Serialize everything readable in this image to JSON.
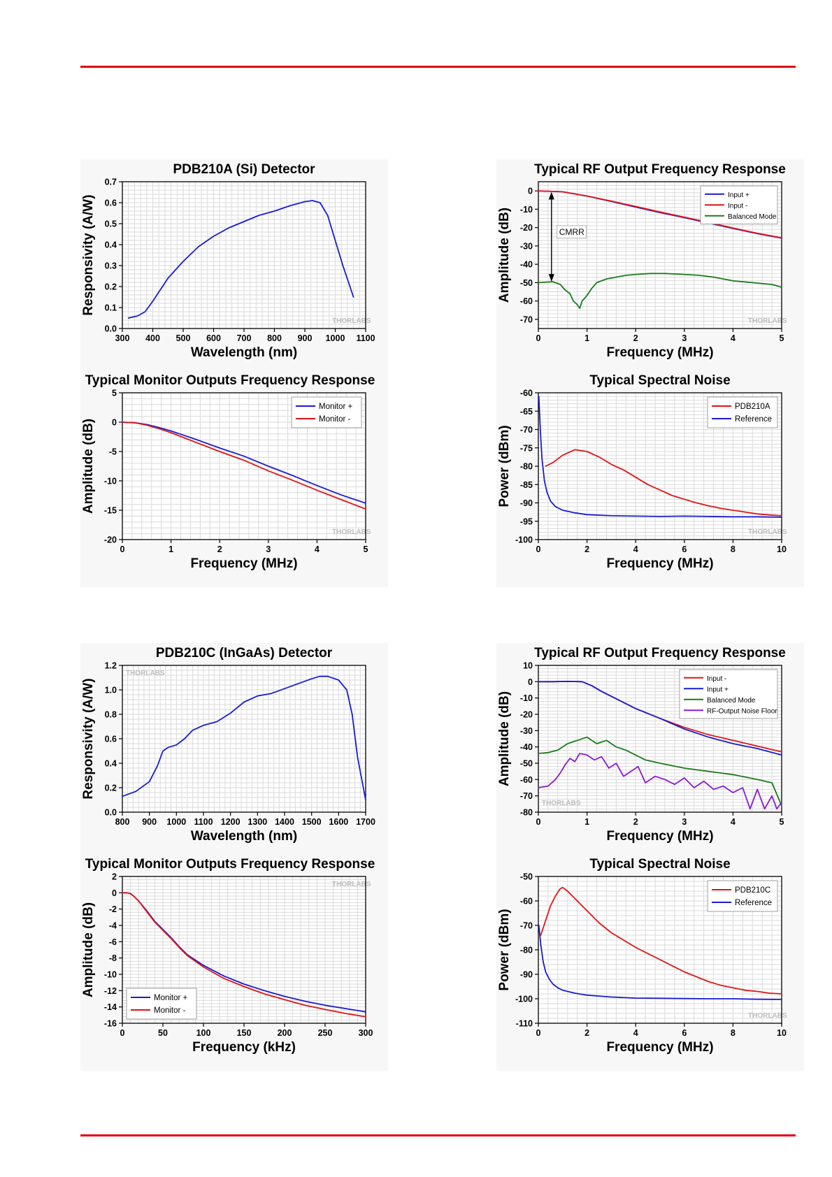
{
  "chart_data": [
    {
      "type": "line",
      "title": "PDB210A (Si) Detector",
      "xlabel": "Wavelength (nm)",
      "ylabel": "Responsivity (A/W)",
      "xlim": [
        300,
        1100
      ],
      "ylim": [
        0,
        0.7
      ],
      "xticks": [
        300,
        400,
        500,
        600,
        700,
        800,
        900,
        1000,
        1100
      ],
      "yticks": [
        0.0,
        0.1,
        0.2,
        0.3,
        0.4,
        0.5,
        0.6,
        0.7
      ],
      "ytick_labels": [
        "0.0",
        "0.1",
        "0.2",
        "0.3",
        "0.4",
        "0.5",
        "0.6",
        "0.7"
      ],
      "grid": true,
      "watermark": "THORLABS",
      "series": [
        {
          "color": "#1a1ad6",
          "x": [
            320,
            350,
            375,
            400,
            450,
            500,
            550,
            600,
            650,
            700,
            750,
            800,
            850,
            900,
            925,
            950,
            975,
            1000,
            1025,
            1060
          ],
          "y": [
            0.05,
            0.06,
            0.08,
            0.13,
            0.24,
            0.32,
            0.39,
            0.44,
            0.48,
            0.51,
            0.54,
            0.56,
            0.585,
            0.605,
            0.61,
            0.6,
            0.54,
            0.42,
            0.3,
            0.15
          ]
        }
      ]
    },
    {
      "type": "line",
      "title": "Typical RF Output Frequency Response",
      "xlabel": "Frequency (MHz)",
      "ylabel": "Amplitude (dB)",
      "xlim": [
        0,
        5
      ],
      "ylim": [
        -75,
        5
      ],
      "xticks": [
        0,
        1,
        2,
        3,
        4,
        5
      ],
      "yticks": [
        0,
        -10,
        -20,
        -30,
        -40,
        -50,
        -60,
        -70
      ],
      "grid": true,
      "legend": "top-right",
      "watermark": "THORLABS",
      "annotation": "CMRR",
      "series": [
        {
          "name": "Input +",
          "color": "#1a1ad6",
          "x": [
            0,
            0.5,
            1,
            1.5,
            2,
            2.5,
            3,
            3.5,
            4,
            4.5,
            5
          ],
          "y": [
            0,
            -0.5,
            -2.8,
            -5.8,
            -8.8,
            -11.8,
            -14.6,
            -17.5,
            -20.5,
            -23.3,
            -25.8
          ]
        },
        {
          "name": "Input -",
          "color": "#e01414",
          "x": [
            0,
            0.5,
            1,
            1.5,
            2,
            2.5,
            3,
            3.5,
            4,
            4.5,
            5
          ],
          "y": [
            0,
            -0.5,
            -2.8,
            -5.6,
            -8.5,
            -11.5,
            -14.3,
            -17.2,
            -20.2,
            -23.1,
            -25.6
          ]
        },
        {
          "name": "Balanced Mode",
          "color": "#1a7a1a",
          "x": [
            0,
            0.3,
            0.45,
            0.55,
            0.65,
            0.72,
            0.8,
            0.85,
            0.9,
            1.0,
            1.1,
            1.2,
            1.4,
            1.6,
            1.8,
            2.0,
            2.3,
            2.6,
            3.0,
            3.3,
            3.6,
            4.0,
            4.4,
            4.8,
            5.0
          ],
          "y": [
            -50,
            -49.5,
            -51,
            -54,
            -56,
            -60,
            -62,
            -64,
            -60,
            -57,
            -53,
            -50,
            -48,
            -47,
            -46,
            -45.5,
            -45,
            -45,
            -45.5,
            -46,
            -47,
            -49,
            -50,
            -51,
            -52.5
          ]
        }
      ]
    },
    {
      "type": "line",
      "title": "Typical Monitor Outputs Frequency Response",
      "xlabel": "Frequency (MHz)",
      "ylabel": "Amplitude (dB)",
      "xlim": [
        0,
        5
      ],
      "ylim": [
        -20,
        5
      ],
      "xticks": [
        0,
        1,
        2,
        3,
        4,
        5
      ],
      "yticks": [
        5,
        0,
        -5,
        -10,
        -15,
        -20
      ],
      "grid": true,
      "legend": "top-right",
      "watermark": "THORLABS",
      "series": [
        {
          "name": "Monitor +",
          "color": "#1a1ad6",
          "x": [
            0,
            0.25,
            0.5,
            0.75,
            1,
            1.5,
            2,
            2.5,
            3,
            3.5,
            4,
            4.5,
            5
          ],
          "y": [
            0,
            -0.1,
            -0.4,
            -0.9,
            -1.5,
            -2.9,
            -4.4,
            -5.8,
            -7.5,
            -9.1,
            -10.8,
            -12.4,
            -13.8
          ]
        },
        {
          "name": "Monitor -",
          "color": "#e01414",
          "x": [
            0,
            0.25,
            0.5,
            0.75,
            1,
            1.5,
            2,
            2.5,
            3,
            3.5,
            4,
            4.5,
            5
          ],
          "y": [
            0,
            -0.1,
            -0.5,
            -1.1,
            -1.8,
            -3.4,
            -5.0,
            -6.5,
            -8.3,
            -9.9,
            -11.6,
            -13.2,
            -14.8
          ]
        }
      ]
    },
    {
      "type": "line",
      "title": "Typical Spectral Noise",
      "xlabel": "Frequency (MHz)",
      "ylabel": "Power (dBm)",
      "xlim": [
        0,
        10
      ],
      "ylim": [
        -100,
        -60
      ],
      "xticks": [
        0,
        2,
        4,
        6,
        8,
        10
      ],
      "yticks": [
        -60,
        -65,
        -70,
        -75,
        -80,
        -85,
        -90,
        -95,
        -100
      ],
      "grid": true,
      "legend": "top-right",
      "watermark": "THORLABS",
      "series": [
        {
          "name": "PDB210A",
          "color": "#e01414",
          "x": [
            0.3,
            0.6,
            1.0,
            1.5,
            2.0,
            2.5,
            3.0,
            3.5,
            4.0,
            4.5,
            5.0,
            5.5,
            6.0,
            6.5,
            7.0,
            7.5,
            8.0,
            8.5,
            9.0,
            9.5,
            10.0
          ],
          "y": [
            -80,
            -79,
            -77,
            -75.5,
            -76,
            -77.5,
            -79.5,
            -81,
            -83,
            -85,
            -86.5,
            -88,
            -89,
            -90,
            -90.8,
            -91.5,
            -92,
            -92.5,
            -93,
            -93.3,
            -93.5
          ]
        },
        {
          "name": "Reference",
          "color": "#1a1ad6",
          "x": [
            0.02,
            0.08,
            0.15,
            0.25,
            0.35,
            0.5,
            0.7,
            1.0,
            1.5,
            2.0,
            3.0,
            4.0,
            5.0,
            6.0,
            7.0,
            8.0,
            9.0,
            10.0
          ],
          "y": [
            -61,
            -70,
            -78,
            -84,
            -87,
            -89.5,
            -91,
            -92,
            -92.7,
            -93.2,
            -93.5,
            -93.6,
            -93.7,
            -93.6,
            -93.7,
            -93.8,
            -93.8,
            -93.9
          ]
        }
      ]
    },
    {
      "type": "line",
      "title": "PDB210C (InGaAs) Detector",
      "xlabel": "Wavelength (nm)",
      "ylabel": "Responsivity (A/W)",
      "xlim": [
        800,
        1700
      ],
      "ylim": [
        0,
        1.2
      ],
      "xticks": [
        800,
        900,
        1000,
        1100,
        1200,
        1300,
        1400,
        1500,
        1600,
        1700
      ],
      "yticks": [
        0.0,
        0.2,
        0.4,
        0.6,
        0.8,
        1.0,
        1.2
      ],
      "ytick_labels": [
        "0.0",
        "0.2",
        "0.4",
        "0.6",
        "0.8",
        "1.0",
        "1.2"
      ],
      "grid": true,
      "watermark": "THORLABS",
      "series": [
        {
          "color": "#1a1ad6",
          "x": [
            800,
            850,
            900,
            930,
            950,
            970,
            1000,
            1030,
            1060,
            1100,
            1150,
            1200,
            1250,
            1300,
            1350,
            1400,
            1450,
            1500,
            1530,
            1560,
            1600,
            1630,
            1650,
            1670,
            1700
          ],
          "y": [
            0.13,
            0.17,
            0.25,
            0.38,
            0.5,
            0.53,
            0.55,
            0.6,
            0.67,
            0.71,
            0.74,
            0.81,
            0.9,
            0.95,
            0.97,
            1.01,
            1.05,
            1.09,
            1.11,
            1.11,
            1.08,
            1.0,
            0.8,
            0.45,
            0.1
          ]
        }
      ]
    },
    {
      "type": "line",
      "title": "Typical RF Output Frequency Response",
      "xlabel": "Frequency (MHz)",
      "ylabel": "Amplitude (dB)",
      "xlim": [
        0,
        5
      ],
      "ylim": [
        -80,
        10
      ],
      "xticks": [
        0,
        1,
        2,
        3,
        4,
        5
      ],
      "yticks": [
        10,
        0,
        -10,
        -20,
        -30,
        -40,
        -50,
        -60,
        -70,
        -80
      ],
      "grid": true,
      "legend": "top-right",
      "watermark": "THORLABS",
      "series": [
        {
          "name": "Input -",
          "color": "#e01414",
          "x": [
            0,
            0.3,
            0.6,
            0.9,
            1.1,
            1.3,
            1.5,
            2.0,
            2.5,
            3.0,
            3.5,
            4.0,
            4.5,
            5.0
          ],
          "y": [
            0,
            0,
            0.2,
            0,
            -2.5,
            -6,
            -9,
            -16.5,
            -22.5,
            -28,
            -32.5,
            -36,
            -39.5,
            -43
          ]
        },
        {
          "name": "Input +",
          "color": "#1a1ad6",
          "x": [
            0,
            0.3,
            0.6,
            0.9,
            1.1,
            1.3,
            1.5,
            2.0,
            2.5,
            3.0,
            3.5,
            4.0,
            4.5,
            5.0
          ],
          "y": [
            0,
            0,
            0.2,
            0,
            -2.5,
            -6,
            -9,
            -16.5,
            -22.5,
            -29,
            -34,
            -38,
            -41,
            -45
          ]
        },
        {
          "name": "Balanced Mode",
          "color": "#1a7a1a",
          "x": [
            0,
            0.2,
            0.4,
            0.6,
            0.8,
            1.0,
            1.2,
            1.4,
            1.6,
            1.8,
            2.0,
            2.2,
            2.5,
            3.0,
            3.5,
            4.0,
            4.5,
            4.8,
            5.0
          ],
          "y": [
            -44,
            -43.5,
            -42,
            -38,
            -36,
            -34,
            -38,
            -36,
            -40,
            -42,
            -45,
            -48,
            -50,
            -53,
            -55,
            -57,
            -60,
            -62,
            -76
          ]
        },
        {
          "name": "RF-Output Noise Floor",
          "color": "#8a1ad6",
          "x": [
            0,
            0.2,
            0.35,
            0.45,
            0.55,
            0.65,
            0.75,
            0.85,
            1.0,
            1.15,
            1.3,
            1.45,
            1.6,
            1.75,
            1.9,
            2.05,
            2.2,
            2.4,
            2.6,
            2.8,
            3.0,
            3.2,
            3.4,
            3.6,
            3.8,
            4.0,
            4.2,
            4.35,
            4.5,
            4.65,
            4.8,
            4.9,
            5.0
          ],
          "y": [
            -65,
            -64,
            -60,
            -56,
            -51,
            -47,
            -49,
            -44,
            -45,
            -48,
            -46,
            -53,
            -50,
            -58,
            -55,
            -52,
            -62,
            -58,
            -60,
            -63,
            -59,
            -65,
            -61,
            -66,
            -64,
            -68,
            -65,
            -78,
            -66,
            -78,
            -70,
            -78,
            -74
          ]
        }
      ]
    },
    {
      "type": "line",
      "title": "Typical Monitor Outputs Frequency Response",
      "xlabel": "Frequency (kHz)",
      "ylabel": "Amplitude (dB)",
      "xlim": [
        0,
        300
      ],
      "ylim": [
        -16,
        2
      ],
      "xticks": [
        0,
        50,
        100,
        150,
        200,
        250,
        300
      ],
      "yticks": [
        2,
        0,
        -2,
        -4,
        -6,
        -8,
        -10,
        -12,
        -14,
        -16
      ],
      "grid": true,
      "legend": "bottom-left",
      "watermark": "THORLABS",
      "series": [
        {
          "name": "Monitor +",
          "color": "#1a1ad6",
          "x": [
            0,
            5,
            10,
            15,
            20,
            30,
            40,
            50,
            60,
            70,
            80,
            100,
            125,
            150,
            175,
            200,
            225,
            250,
            275,
            300
          ],
          "y": [
            0,
            0,
            -0.1,
            -0.5,
            -1.0,
            -2.2,
            -3.5,
            -4.5,
            -5.5,
            -6.6,
            -7.6,
            -8.9,
            -10.2,
            -11.2,
            -12.0,
            -12.7,
            -13.3,
            -13.8,
            -14.2,
            -14.6
          ]
        },
        {
          "name": "Monitor -",
          "color": "#e01414",
          "x": [
            0,
            5,
            10,
            15,
            20,
            30,
            40,
            50,
            60,
            70,
            80,
            100,
            125,
            150,
            175,
            200,
            225,
            250,
            275,
            300
          ],
          "y": [
            0,
            0,
            -0.1,
            -0.5,
            -1.0,
            -2.3,
            -3.6,
            -4.6,
            -5.6,
            -6.7,
            -7.7,
            -9.1,
            -10.5,
            -11.5,
            -12.4,
            -13.1,
            -13.8,
            -14.3,
            -14.8,
            -15.2
          ]
        }
      ]
    },
    {
      "type": "line",
      "title": "Typical Spectral Noise",
      "xlabel": "Frequency (MHz)",
      "ylabel": "Power (dBm)",
      "xlim": [
        0,
        10
      ],
      "ylim": [
        -110,
        -50
      ],
      "xticks": [
        0,
        2,
        4,
        6,
        8,
        10
      ],
      "yticks": [
        -50,
        -60,
        -70,
        -80,
        -90,
        -100,
        -110
      ],
      "grid": true,
      "legend": "top-right",
      "watermark": "THORLABS",
      "series": [
        {
          "name": "PDB210C",
          "color": "#e01414",
          "x": [
            0.1,
            0.3,
            0.5,
            0.7,
            0.9,
            1.0,
            1.2,
            1.5,
            2.0,
            2.5,
            3.0,
            3.5,
            4.0,
            4.5,
            5.0,
            5.5,
            6.0,
            6.5,
            7.0,
            7.5,
            8.0,
            8.5,
            9.0,
            9.5,
            10.0
          ],
          "y": [
            -74,
            -68,
            -62,
            -58,
            -55,
            -54.5,
            -56,
            -59,
            -64,
            -69,
            -73,
            -76,
            -79,
            -81.5,
            -84,
            -86.5,
            -89,
            -91,
            -93,
            -94.5,
            -95.5,
            -96.5,
            -97,
            -97.7,
            -98
          ]
        },
        {
          "name": "Reference",
          "color": "#1a1ad6",
          "x": [
            0.02,
            0.1,
            0.2,
            0.3,
            0.45,
            0.6,
            0.8,
            1.0,
            1.5,
            2.0,
            3.0,
            4.0,
            5.0,
            6.0,
            7.0,
            8.0,
            9.0,
            10.0
          ],
          "y": [
            -70,
            -78,
            -85,
            -89,
            -92,
            -94,
            -95.5,
            -96.5,
            -97.7,
            -98.5,
            -99.3,
            -99.7,
            -99.8,
            -99.9,
            -100,
            -100,
            -100.2,
            -100.3
          ]
        }
      ]
    }
  ]
}
